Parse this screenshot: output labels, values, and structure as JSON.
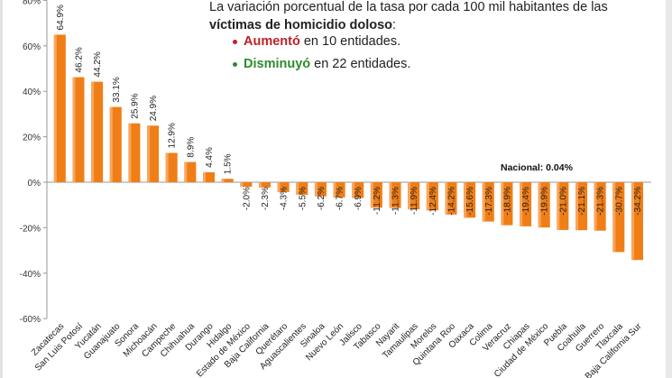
{
  "annotation": {
    "line1": "La variación porcentual de la tasa por cada 100 mil habitantes de las",
    "line2_bold": "víctimas de homicidio doloso",
    "line2_rest": ":",
    "bullets": [
      {
        "bold": "Aumentó",
        "rest": " en 10 entidades.",
        "color": "#c0202a"
      },
      {
        "bold": "Disminuyó",
        "rest": " en 22 entidades.",
        "color": "#2e8b2e"
      }
    ],
    "national": "Nacional: 0.04%"
  },
  "chart_data": {
    "type": "bar",
    "title": "",
    "xlabel": "",
    "ylabel": "",
    "ylim": [
      -60,
      80
    ],
    "yticks": [
      -60,
      -40,
      -20,
      0,
      20,
      40,
      60,
      80
    ],
    "ytick_labels": [
      "-60%",
      "-40%",
      "-20%",
      "0%",
      "20%",
      "40%",
      "60%",
      "80%"
    ],
    "bar_color": "#f07e16",
    "grid": false,
    "categories": [
      "Zacatecas",
      "San Luis Potosí",
      "Yucatán",
      "Guanajuato",
      "Sonora",
      "Michoacán",
      "Campeche",
      "Chihuahua",
      "Durango",
      "Hidalgo",
      "Estado de México",
      "Baja California",
      "Querétaro",
      "Aguascalientes",
      "Sinaloa",
      "Nuevo León",
      "Jalisco",
      "Tabasco",
      "Nayarit",
      "Tamaulipas",
      "Morelos",
      "Quintana Roo",
      "Oaxaca",
      "Colima",
      "Veracruz",
      "Chiapas",
      "Ciudad de México",
      "Puebla",
      "Coahuila",
      "Guerrero",
      "Tlaxcala",
      "Baja California Sur"
    ],
    "values": [
      64.9,
      46.2,
      44.2,
      33.1,
      25.9,
      24.9,
      12.9,
      8.9,
      4.4,
      1.5,
      -2.0,
      -2.3,
      -4.3,
      -5.5,
      -6.2,
      -6.7,
      -6.9,
      -11.2,
      -11.3,
      -11.9,
      -12.4,
      -14.2,
      -15.6,
      -17.3,
      -18.9,
      -19.4,
      -19.9,
      -21.0,
      -21.1,
      -21.3,
      -30.7,
      -34.2
    ],
    "data_labels": [
      "64.9%",
      "46.2%",
      "44.2%",
      "33.1%",
      "25.9%",
      "24.9%",
      "12.9%",
      "8.9%",
      "4.4%",
      "1.5%",
      "-2.0%",
      "-2.3%",
      "-4.3%",
      "-5.5%",
      "-6.2%",
      "-6.7%",
      "-6.9%",
      "-11.2%",
      "-11.3%",
      "-11.9%",
      "-12.4%",
      "-14.2%",
      "-15.6%",
      "-17.3%",
      "-18.9%",
      "-19.4%",
      "-19.9%",
      "-21.0%",
      "-21.1%",
      "-21.3%",
      "-30.7%",
      "-34.2%"
    ]
  }
}
